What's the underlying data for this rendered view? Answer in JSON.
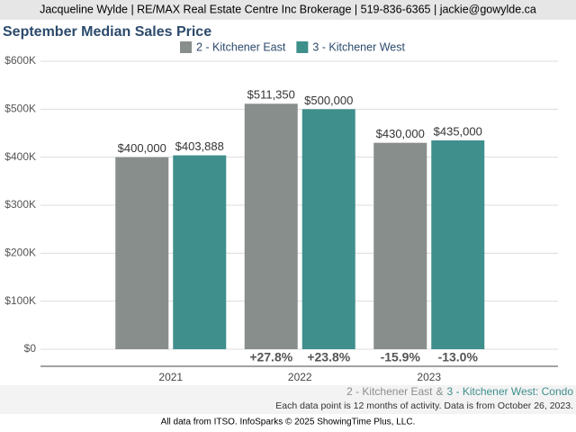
{
  "header": "Jacqueline Wylde | RE/MAX Real Estate Centre Inc Brokerage | 519-836-6365 | jackie@gowylde.ca",
  "chart_data": {
    "type": "bar",
    "title": "September Median Sales Price",
    "categories": [
      "2021",
      "2022",
      "2023"
    ],
    "series": [
      {
        "name": "2 - Kitchener East",
        "color": "#888e8c",
        "values": [
          400000,
          511350,
          430000
        ],
        "value_labels": [
          "$400,000",
          "$511,350",
          "$430,000"
        ],
        "change_labels": [
          null,
          "+27.8%",
          "-15.9%"
        ]
      },
      {
        "name": "3 - Kitchener West",
        "color": "#3f8f8c",
        "values": [
          403888,
          500000,
          435000
        ],
        "value_labels": [
          "$403,888",
          "$500,000",
          "$435,000"
        ],
        "change_labels": [
          null,
          "+23.8%",
          "-13.0%"
        ]
      }
    ],
    "ylim": [
      0,
      600000
    ],
    "yticks": [
      {
        "value": 0,
        "label": "$0"
      },
      {
        "value": 100000,
        "label": "$100K"
      },
      {
        "value": 200000,
        "label": "$200K"
      },
      {
        "value": 300000,
        "label": "$300K"
      },
      {
        "value": 400000,
        "label": "$400K"
      },
      {
        "value": 500000,
        "label": "$500K"
      },
      {
        "value": 600000,
        "label": "$600K"
      }
    ],
    "grid": true,
    "legend": "top"
  },
  "footer": {
    "market": [
      "2 - Kitchener East",
      "&",
      "3 - Kitchener West: Condo"
    ],
    "note": "Each data point is 12 months of activity. Data is from October 26, 2023.",
    "source": "All data from ITSO. InfoSparks © 2025 ShowingTime Plus, LLC."
  }
}
